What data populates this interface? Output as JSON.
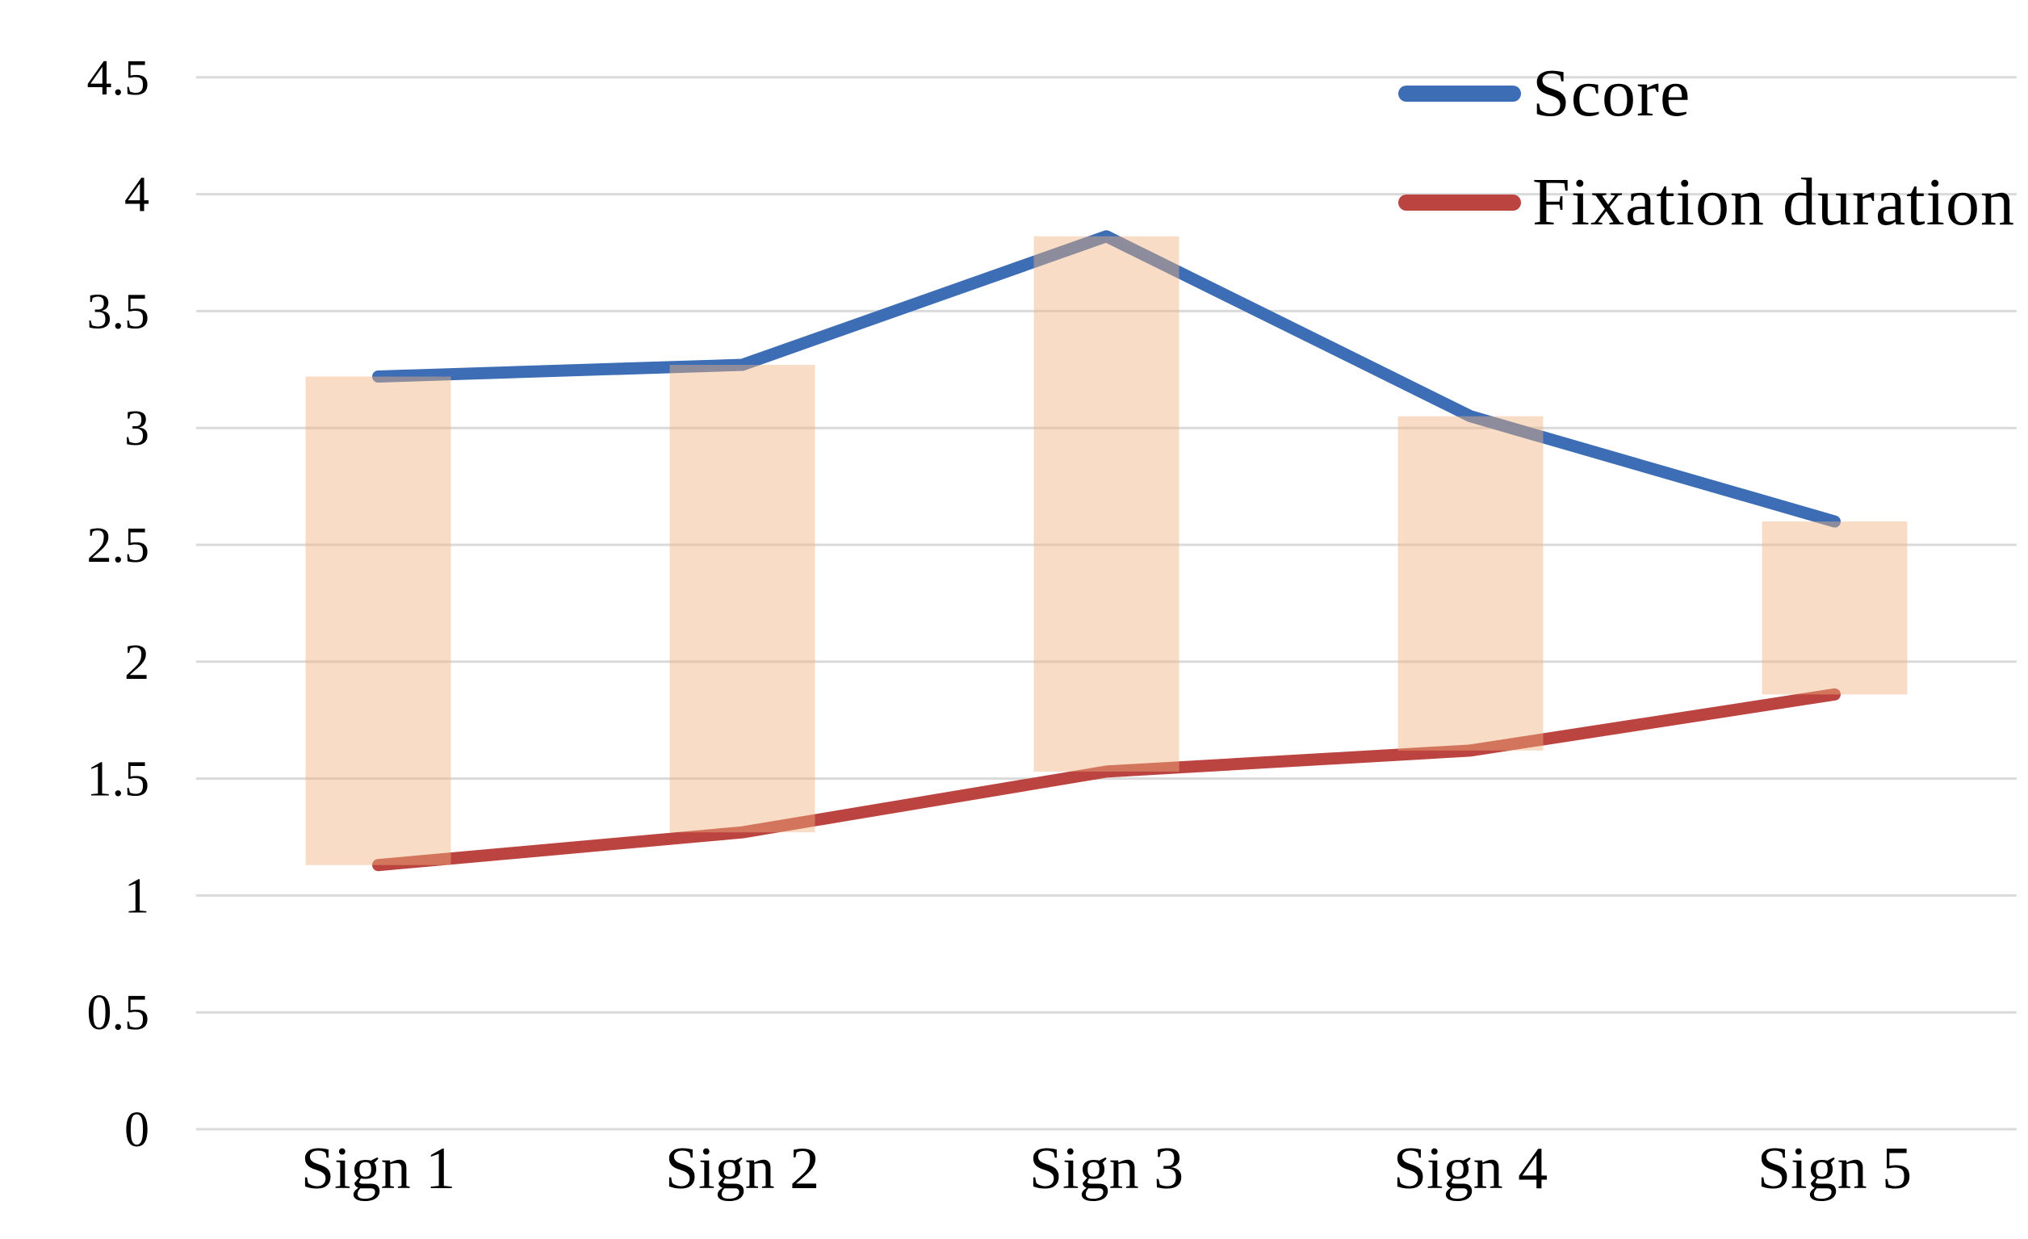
{
  "chart_data": {
    "type": "line",
    "title": "",
    "categories": [
      "Sign 1",
      "Sign 2",
      "Sign 3",
      "Sign 4",
      "Sign 5"
    ],
    "series": [
      {
        "name": "Score",
        "color": "#3D6DB5",
        "values": [
          3.22,
          3.27,
          3.82,
          3.05,
          2.6
        ]
      },
      {
        "name": "Fixation duration",
        "color": "#BC4440",
        "values": [
          1.13,
          1.27,
          1.53,
          1.62,
          1.86
        ]
      }
    ],
    "updown_bars": {
      "between_series": [
        "Score",
        "Fixation duration"
      ],
      "fill": "#F0B17F",
      "opacity": 0.45
    },
    "y_ticks": [
      "0",
      "0.5",
      "1",
      "1.5",
      "2",
      "2.5",
      "3",
      "3.5",
      "4",
      "4.5"
    ],
    "ylim": [
      0,
      4.5
    ],
    "grid": "horizontal",
    "gridline_color": "#DADADA",
    "axis_text_color": "#000000",
    "background_color": "#FFFFFF",
    "legend_position": "top-right"
  }
}
